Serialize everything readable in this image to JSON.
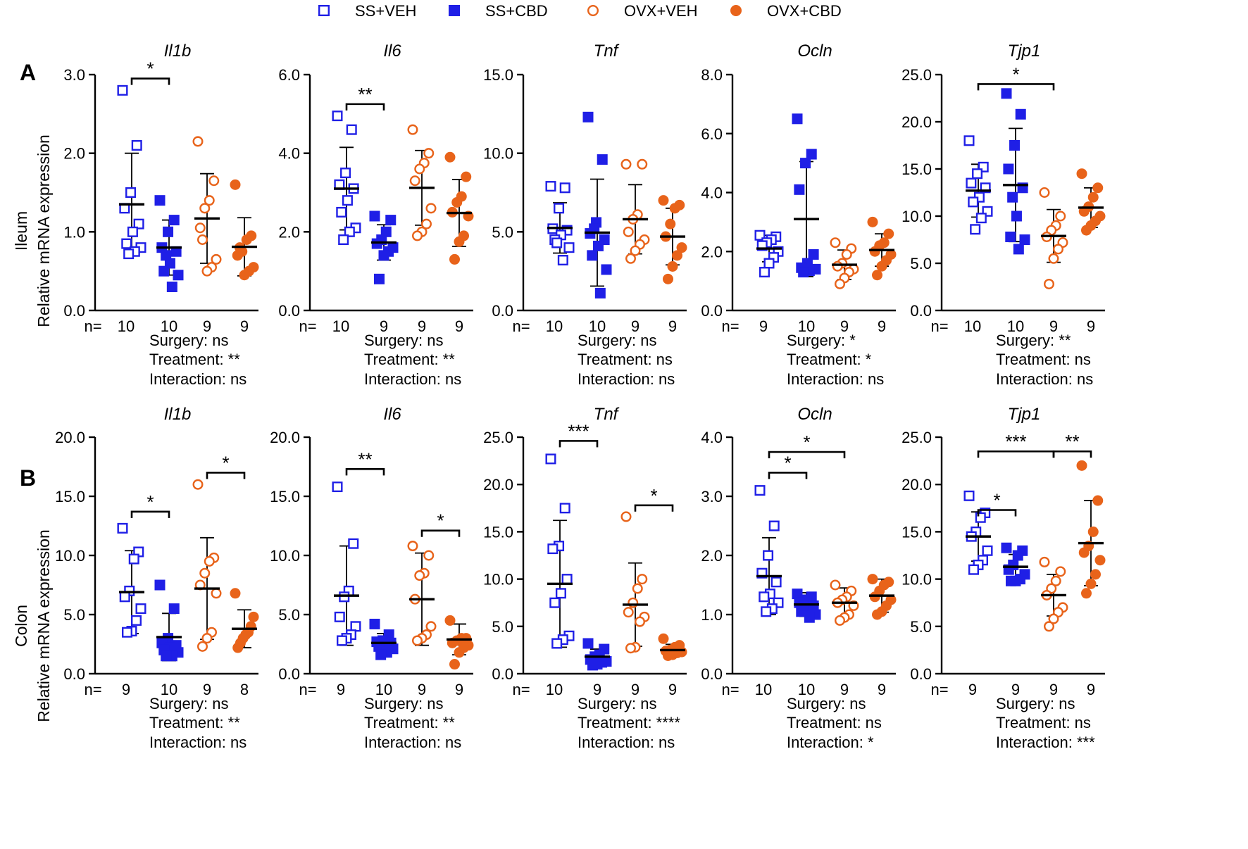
{
  "legend": [
    {
      "label": "SS+VEH",
      "color": "#1f1fe6",
      "filled": false,
      "shape": "square"
    },
    {
      "label": "SS+CBD",
      "color": "#1f1fe6",
      "filled": true,
      "shape": "square"
    },
    {
      "label": "OVX+VEH",
      "color": "#e8631a",
      "filled": false,
      "shape": "circle"
    },
    {
      "label": "OVX+CBD",
      "color": "#e8631a",
      "filled": true,
      "shape": "circle"
    }
  ],
  "panels": [
    {
      "letter": "A",
      "row_label": "Ileum",
      "ylabel": "Relative mRNA expression"
    },
    {
      "letter": "B",
      "row_label": "Colon",
      "ylabel": "Relative mRNA expression"
    }
  ],
  "chart_data": [
    {
      "type": "scatter",
      "title": "Il1b",
      "ylim": [
        0,
        3
      ],
      "yticks": [
        "0.0",
        "1.0",
        "2.0",
        "3.0"
      ],
      "n_prefix": "n=",
      "n": [
        "10",
        "10",
        "9",
        "9"
      ],
      "stats": [
        "Surgery: ns",
        "Treatment: **",
        "Interaction: ns"
      ],
      "series": [
        {
          "name": "SS+VEH",
          "mean": 1.35,
          "sd": 0.65,
          "values": [
            2.8,
            2.1,
            1.5,
            1.3,
            1.1,
            1.0,
            0.85,
            0.8,
            0.75,
            0.72
          ]
        },
        {
          "name": "SS+CBD",
          "mean": 0.8,
          "sd": 0.35,
          "values": [
            1.4,
            1.15,
            1.0,
            0.8,
            0.75,
            0.6,
            0.5,
            0.45,
            0.3,
            0.7
          ]
        },
        {
          "name": "OVX+VEH",
          "mean": 1.17,
          "sd": 0.57,
          "values": [
            2.15,
            1.65,
            1.4,
            1.3,
            1.05,
            0.65,
            0.55,
            0.5,
            0.9
          ]
        },
        {
          "name": "OVX+CBD",
          "mean": 0.81,
          "sd": 0.37,
          "values": [
            1.6,
            0.95,
            0.9,
            0.75,
            0.7,
            0.55,
            0.5,
            0.45,
            0.8
          ]
        }
      ],
      "significance": [
        {
          "from": 0,
          "to": 1,
          "y": 2.95,
          "label": "*"
        }
      ]
    },
    {
      "type": "scatter",
      "title": "Il6",
      "ylim": [
        0,
        6
      ],
      "yticks": [
        "0.0",
        "2.0",
        "4.0",
        "6.0"
      ],
      "n_prefix": "n=",
      "n": [
        "10",
        "9",
        "9",
        "9"
      ],
      "stats": [
        "Surgery: ns",
        "Treatment: **",
        "Interaction: ns"
      ],
      "series": [
        {
          "name": "SS+VEH",
          "mean": 3.1,
          "sd": 1.05,
          "values": [
            4.95,
            4.6,
            3.5,
            3.2,
            3.1,
            2.8,
            2.5,
            2.1,
            2.0,
            1.8
          ]
        },
        {
          "name": "SS+CBD",
          "mean": 1.73,
          "sd": 0.45,
          "values": [
            2.4,
            2.3,
            2.0,
            1.8,
            1.7,
            1.6,
            1.5,
            1.4,
            0.8
          ]
        },
        {
          "name": "OVX+VEH",
          "mean": 3.12,
          "sd": 0.95,
          "values": [
            4.6,
            4.0,
            3.75,
            3.6,
            3.3,
            2.6,
            2.2,
            2.0,
            1.9
          ]
        },
        {
          "name": "OVX+CBD",
          "mean": 2.48,
          "sd": 0.85,
          "values": [
            3.9,
            3.4,
            2.9,
            2.75,
            2.5,
            2.4,
            1.9,
            1.75,
            1.3
          ]
        }
      ],
      "significance": [
        {
          "from": 0,
          "to": 1,
          "y": 5.25,
          "label": "**"
        }
      ]
    },
    {
      "type": "scatter",
      "title": "Tnf",
      "ylim": [
        0,
        15
      ],
      "yticks": [
        "0.0",
        "5.0",
        "10.0",
        "15.0"
      ],
      "n_prefix": "n=",
      "n": [
        "10",
        "10",
        "9",
        "9"
      ],
      "stats": [
        "Surgery: ns",
        "Treatment: ns",
        "Interaction: ns"
      ],
      "series": [
        {
          "name": "SS+VEH",
          "mean": 5.25,
          "sd": 1.6,
          "values": [
            7.9,
            7.8,
            6.5,
            5.2,
            5.1,
            4.8,
            4.5,
            4.0,
            3.2,
            4.3
          ]
        },
        {
          "name": "SS+CBD",
          "mean": 4.95,
          "sd": 3.4,
          "values": [
            12.3,
            9.6,
            5.6,
            4.9,
            4.5,
            4.1,
            3.5,
            2.6,
            1.1,
            5.2
          ]
        },
        {
          "name": "OVX+VEH",
          "mean": 5.8,
          "sd": 2.2,
          "values": [
            9.3,
            9.3,
            6.1,
            5.8,
            5.0,
            4.5,
            4.2,
            3.8,
            3.3
          ]
        },
        {
          "name": "OVX+CBD",
          "mean": 4.7,
          "sd": 1.8,
          "values": [
            7.0,
            6.7,
            6.5,
            5.5,
            4.7,
            4.0,
            3.5,
            2.8,
            2.0
          ]
        }
      ],
      "significance": []
    },
    {
      "type": "scatter",
      "title": "Ocln",
      "ylim": [
        0,
        8
      ],
      "yticks": [
        "0.0",
        "2.0",
        "4.0",
        "6.0",
        "8.0"
      ],
      "n_prefix": "n=",
      "n": [
        "9",
        "10",
        "9",
        "9"
      ],
      "stats": [
        "Surgery: *",
        "Treatment: *",
        "Interaction: ns"
      ],
      "series": [
        {
          "name": "SS+VEH",
          "mean": 2.1,
          "sd": 0.45,
          "values": [
            2.55,
            2.5,
            2.4,
            2.3,
            2.2,
            2.0,
            1.8,
            1.6,
            1.3
          ]
        },
        {
          "name": "SS+CBD",
          "mean": 3.1,
          "sd": 1.95,
          "values": [
            6.5,
            5.3,
            5.0,
            4.1,
            1.9,
            1.6,
            1.45,
            1.4,
            1.35,
            1.3
          ]
        },
        {
          "name": "OVX+VEH",
          "mean": 1.55,
          "sd": 0.5,
          "values": [
            2.3,
            2.1,
            1.9,
            1.6,
            1.5,
            1.4,
            1.3,
            1.1,
            0.9
          ]
        },
        {
          "name": "OVX+CBD",
          "mean": 2.05,
          "sd": 0.55,
          "values": [
            3.0,
            2.6,
            2.3,
            2.2,
            2.0,
            1.9,
            1.7,
            1.5,
            1.2
          ]
        }
      ],
      "significance": []
    },
    {
      "type": "scatter",
      "title": "Tjp1",
      "ylim": [
        0,
        25
      ],
      "yticks": [
        "0.0",
        "5.0",
        "10.0",
        "15.0",
        "20.0",
        "25.0"
      ],
      "n_prefix": "n=",
      "n": [
        "10",
        "10",
        "9",
        "9"
      ],
      "stats": [
        "Surgery: **",
        "Treatment: ns",
        "Interaction: ns"
      ],
      "series": [
        {
          "name": "SS+VEH",
          "mean": 12.7,
          "sd": 2.8,
          "values": [
            18.0,
            15.2,
            14.5,
            13.5,
            13.0,
            12.0,
            11.5,
            10.5,
            9.8,
            8.6
          ]
        },
        {
          "name": "SS+CBD",
          "mean": 13.3,
          "sd": 6.0,
          "values": [
            23.0,
            20.8,
            17.5,
            15.0,
            13.0,
            10.0,
            7.8,
            7.5,
            6.5,
            12.0
          ]
        },
        {
          "name": "OVX+VEH",
          "mean": 7.9,
          "sd": 2.8,
          "values": [
            12.5,
            10.0,
            9.0,
            8.5,
            7.8,
            7.2,
            6.5,
            5.5,
            2.8
          ]
        },
        {
          "name": "OVX+CBD",
          "mean": 10.9,
          "sd": 2.1,
          "values": [
            14.5,
            13.0,
            12.0,
            11.0,
            10.5,
            10.0,
            9.5,
            9.0,
            8.5
          ]
        }
      ],
      "significance": [
        {
          "from": 0,
          "to": 2,
          "y": 24.0,
          "label": "*"
        }
      ]
    },
    {
      "type": "scatter",
      "title": "Il1b",
      "ylim": [
        0,
        20
      ],
      "yticks": [
        "0.0",
        "5.0",
        "10.0",
        "15.0",
        "20.0"
      ],
      "n_prefix": "n=",
      "n": [
        "9",
        "10",
        "9",
        "8"
      ],
      "stats": [
        "Surgery: ns",
        "Treatment: **",
        "Interaction: ns"
      ],
      "series": [
        {
          "name": "SS+VEH",
          "mean": 6.9,
          "sd": 3.5,
          "values": [
            12.3,
            10.3,
            9.7,
            7.0,
            6.5,
            5.5,
            4.5,
            3.6,
            3.5
          ]
        },
        {
          "name": "SS+CBD",
          "mean": 3.1,
          "sd": 2.0,
          "values": [
            7.5,
            5.5,
            3.0,
            2.6,
            2.4,
            2.2,
            2.0,
            1.8,
            1.5,
            1.5
          ]
        },
        {
          "name": "OVX+VEH",
          "mean": 7.2,
          "sd": 4.3,
          "values": [
            16.0,
            9.8,
            9.5,
            8.5,
            7.5,
            6.8,
            3.5,
            3.0,
            2.3
          ]
        },
        {
          "name": "OVX+CBD",
          "mean": 3.8,
          "sd": 1.6,
          "values": [
            6.8,
            4.8,
            4.0,
            3.5,
            3.3,
            3.0,
            2.6,
            2.2
          ]
        }
      ],
      "significance": [
        {
          "from": 0,
          "to": 1,
          "y": 13.7,
          "label": "*"
        },
        {
          "from": 2,
          "to": 3,
          "y": 17.0,
          "label": "*"
        }
      ]
    },
    {
      "type": "scatter",
      "title": "Il6",
      "ylim": [
        0,
        20
      ],
      "yticks": [
        "0.0",
        "5.0",
        "10.0",
        "15.0",
        "20.0"
      ],
      "n_prefix": "n=",
      "n": [
        "9",
        "10",
        "9",
        "9"
      ],
      "stats": [
        "Surgery: ns",
        "Treatment: **",
        "Interaction: ns"
      ],
      "series": [
        {
          "name": "SS+VEH",
          "mean": 6.6,
          "sd": 4.2,
          "values": [
            15.8,
            11.0,
            7.0,
            6.5,
            4.8,
            4.0,
            3.3,
            3.0,
            2.8
          ]
        },
        {
          "name": "SS+CBD",
          "mean": 2.6,
          "sd": 0.8,
          "values": [
            4.2,
            3.3,
            2.8,
            2.7,
            2.6,
            2.5,
            2.3,
            2.1,
            1.8,
            1.6
          ]
        },
        {
          "name": "OVX+VEH",
          "mean": 6.3,
          "sd": 3.9,
          "values": [
            10.8,
            10.0,
            8.5,
            8.3,
            6.3,
            4.0,
            3.3,
            3.0,
            2.8
          ]
        },
        {
          "name": "OVX+CBD",
          "mean": 2.9,
          "sd": 1.3,
          "values": [
            4.5,
            3.0,
            3.0,
            2.8,
            2.6,
            2.4,
            2.2,
            1.8,
            0.8
          ]
        }
      ],
      "significance": [
        {
          "from": 0,
          "to": 1,
          "y": 17.3,
          "label": "**"
        },
        {
          "from": 2,
          "to": 3,
          "y": 12.1,
          "label": "*"
        }
      ]
    },
    {
      "type": "scatter",
      "title": "Tnf",
      "ylim": [
        0,
        25
      ],
      "yticks": [
        "0.0",
        "5.0",
        "10.0",
        "15.0",
        "20.0",
        "25.0"
      ],
      "n_prefix": "n=",
      "n": [
        "10",
        "9",
        "9",
        "9"
      ],
      "stats": [
        "Surgery: ns",
        "Treatment: ****",
        "Interaction: ns"
      ],
      "series": [
        {
          "name": "SS+VEH",
          "mean": 9.5,
          "sd": 6.7,
          "values": [
            22.7,
            17.5,
            13.5,
            13.2,
            10.0,
            8.5,
            7.5,
            4.0,
            3.6,
            3.2
          ]
        },
        {
          "name": "SS+CBD",
          "mean": 1.8,
          "sd": 0.8,
          "values": [
            3.2,
            2.6,
            2.0,
            1.8,
            1.5,
            1.3,
            1.2,
            1.0,
            0.9
          ]
        },
        {
          "name": "OVX+VEH",
          "mean": 7.3,
          "sd": 4.4,
          "values": [
            16.6,
            10.0,
            9.0,
            7.5,
            6.5,
            6.0,
            5.5,
            2.8,
            2.7
          ]
        },
        {
          "name": "OVX+CBD",
          "mean": 2.5,
          "sd": 0.6,
          "values": [
            3.7,
            3.0,
            2.8,
            2.5,
            2.4,
            2.3,
            2.2,
            2.0,
            1.9
          ]
        }
      ],
      "significance": [
        {
          "from": 0,
          "to": 1,
          "y": 24.6,
          "label": "***"
        },
        {
          "from": 2,
          "to": 3,
          "y": 17.8,
          "label": "*"
        }
      ]
    },
    {
      "type": "scatter",
      "title": "Ocln",
      "ylim": [
        0,
        4
      ],
      "yticks": [
        "0.0",
        "1.0",
        "2.0",
        "3.0",
        "4.0"
      ],
      "n_prefix": "n=",
      "n": [
        "10",
        "10",
        "9",
        "9"
      ],
      "stats": [
        "Surgery: ns",
        "Treatment: ns",
        "Interaction: *"
      ],
      "series": [
        {
          "name": "SS+VEH",
          "mean": 1.65,
          "sd": 0.65,
          "values": [
            3.1,
            2.5,
            2.0,
            1.7,
            1.55,
            1.35,
            1.3,
            1.2,
            1.1,
            1.05
          ]
        },
        {
          "name": "SS+CBD",
          "mean": 1.17,
          "sd": 0.2,
          "values": [
            1.35,
            1.3,
            1.25,
            1.2,
            1.15,
            1.1,
            1.05,
            1.0,
            0.95,
            1.15
          ]
        },
        {
          "name": "OVX+VEH",
          "mean": 1.2,
          "sd": 0.25,
          "values": [
            1.5,
            1.4,
            1.3,
            1.25,
            1.2,
            1.15,
            1.0,
            0.95,
            0.9
          ]
        },
        {
          "name": "OVX+CBD",
          "mean": 1.32,
          "sd": 0.28,
          "values": [
            1.6,
            1.55,
            1.5,
            1.4,
            1.3,
            1.25,
            1.15,
            1.05,
            1.0
          ]
        }
      ],
      "significance": [
        {
          "from": 0,
          "to": 1,
          "y": 3.4,
          "label": "*"
        },
        {
          "from": 0,
          "to": 2,
          "y": 3.75,
          "label": "*"
        }
      ]
    },
    {
      "type": "scatter",
      "title": "Tjp1",
      "ylim": [
        0,
        25
      ],
      "yticks": [
        "0.0",
        "5.0",
        "10.0",
        "15.0",
        "20.0",
        "25.0"
      ],
      "n_prefix": "n=",
      "n": [
        "9",
        "9",
        "9",
        "9"
      ],
      "stats": [
        "Surgery: ns",
        "Treatment: ns",
        "Interaction: ***"
      ],
      "series": [
        {
          "name": "SS+VEH",
          "mean": 14.5,
          "sd": 2.6,
          "values": [
            18.8,
            17.0,
            16.5,
            15.0,
            14.5,
            13.0,
            12.0,
            11.5,
            11.0
          ]
        },
        {
          "name": "SS+CBD",
          "mean": 11.3,
          "sd": 1.3,
          "values": [
            13.3,
            13.0,
            12.5,
            11.5,
            11.0,
            10.5,
            10.0,
            9.8,
            9.8
          ]
        },
        {
          "name": "OVX+VEH",
          "mean": 8.3,
          "sd": 2.2,
          "values": [
            11.8,
            10.8,
            9.8,
            9.0,
            8.3,
            7.0,
            6.5,
            5.8,
            5.0
          ]
        },
        {
          "name": "OVX+CBD",
          "mean": 13.8,
          "sd": 4.5,
          "values": [
            22.0,
            18.3,
            15.0,
            13.5,
            12.8,
            12.0,
            10.5,
            9.5,
            8.5
          ]
        }
      ],
      "significance": [
        {
          "from": 0,
          "to": 1,
          "y": 17.3,
          "label": "*"
        },
        {
          "from": 0,
          "to": 2,
          "y": 23.5,
          "label": "***"
        },
        {
          "from": 2,
          "to": 3,
          "y": 23.5,
          "label": "**"
        }
      ]
    }
  ]
}
